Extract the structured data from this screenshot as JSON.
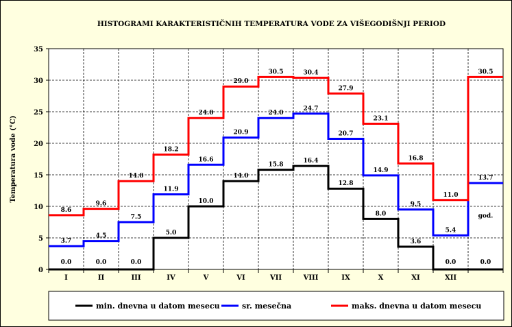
{
  "chart_data": {
    "type": "line",
    "title": "HISTOGRAMI KARAKTERISTIČNIH TEMPERATURA VODE ZA VIŠEGODIŠNJI PERIOD",
    "ylabel": "Temperatura vode (°C)",
    "xlabel": "",
    "ylim": [
      0,
      35
    ],
    "yticks": [
      "0",
      "5",
      "10",
      "15",
      "20",
      "25",
      "30",
      "35"
    ],
    "categories": [
      "I",
      "II",
      "III",
      "IV",
      "V",
      "VI",
      "VII",
      "VIII",
      "IX",
      "X",
      "XI",
      "XII",
      ""
    ],
    "annual_label": "god.",
    "grid": true,
    "legend_position": "bottom",
    "series": [
      {
        "name": "min. dnevna u datom mesecu",
        "color": "#000000",
        "values": [
          0.0,
          0.0,
          0.0,
          5.0,
          10.0,
          14.0,
          15.8,
          16.4,
          12.8,
          8.0,
          3.6,
          0.0,
          0.0
        ],
        "labels": [
          "0.0",
          "0.0",
          "0.0",
          "5.0",
          "10.0",
          "14.0",
          "15.8",
          "16.4",
          "12.8",
          "8.0",
          "3.6",
          "0.0",
          "0.0"
        ]
      },
      {
        "name": "sr. mesečna",
        "color": "#0000ff",
        "values": [
          3.7,
          4.5,
          7.5,
          11.9,
          16.6,
          20.9,
          24.0,
          24.7,
          20.7,
          14.9,
          9.5,
          5.4,
          13.7
        ],
        "labels": [
          "3.7",
          "4.5",
          "7.5",
          "11.9",
          "16.6",
          "20.9",
          "24.0",
          "24.7",
          "20.7",
          "14.9",
          "9.5",
          "5.4",
          "13.7"
        ]
      },
      {
        "name": "maks. dnevna u datom mesecu",
        "color": "#ff0000",
        "values": [
          8.6,
          9.6,
          14.0,
          18.2,
          24.0,
          29.0,
          30.5,
          30.4,
          27.9,
          23.1,
          16.8,
          11.0,
          30.5
        ],
        "labels": [
          "8.6",
          "9.6",
          "14.0",
          "18.2",
          "24.0",
          "29.0",
          "30.5",
          "30.4",
          "27.9",
          "23.1",
          "16.8",
          "11.0",
          "30.5"
        ]
      }
    ]
  }
}
